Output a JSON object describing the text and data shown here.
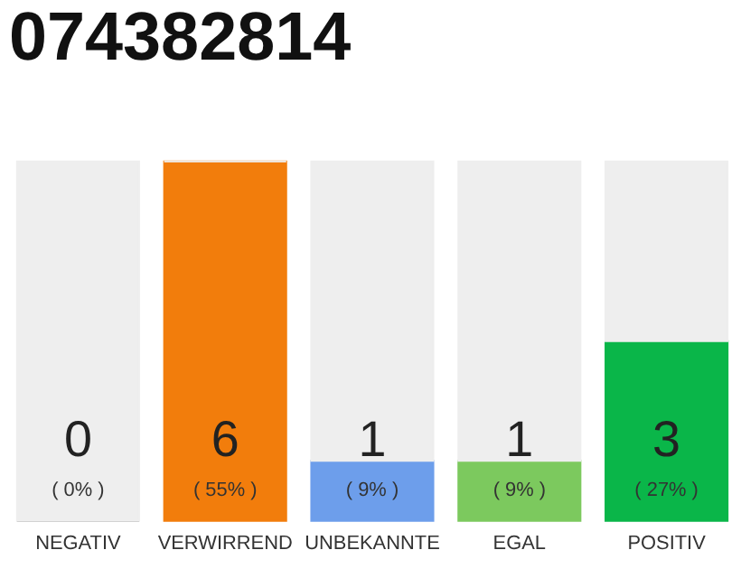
{
  "chart_data": {
    "type": "bar",
    "title": "074382814",
    "stacked": true,
    "categories": [
      "NEGATIV",
      "VERWIRREND",
      "UNBEKANNTE",
      "EGAL",
      "POSITIV"
    ],
    "series": [
      {
        "colors": [
          "#555555",
          "#f27d0c",
          "#6d9eeb",
          "#7cc95e",
          "#0ab649"
        ],
        "values": [
          0,
          6,
          1,
          1,
          3
        ],
        "value_labels": [
          "0",
          "6",
          "1",
          "1",
          "3"
        ]
      },
      {
        "color": "#eeeeee",
        "values": [
          6,
          0,
          5,
          5,
          3
        ],
        "value_labels": [
          null,
          null,
          null,
          null,
          null
        ]
      }
    ],
    "annotations": [
      "( 0% )",
      "( 55% )",
      "( 9% )",
      "( 9% )",
      "( 27% )"
    ],
    "grid": false
  }
}
